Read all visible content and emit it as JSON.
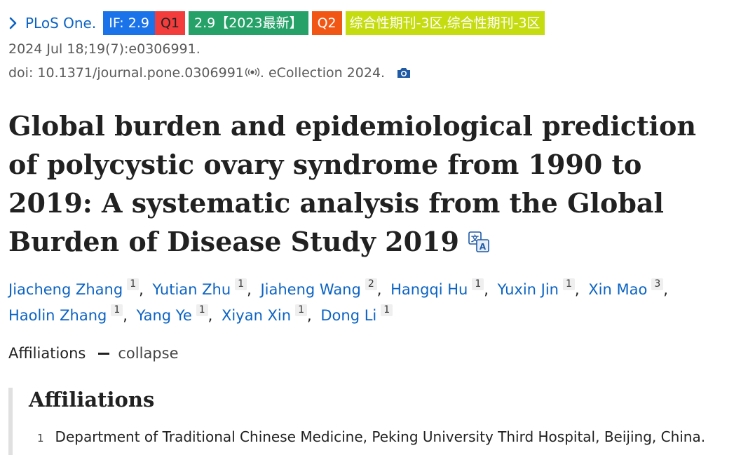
{
  "journal": {
    "name": "PLoS One.",
    "badges": {
      "impact_factor": "IF: 2.9",
      "quartile": "Q1",
      "cas_score": "2.9【2023最新】",
      "cas_quartile": "Q2",
      "cas_zone": "综合性期刊-3区,综合性期刊-3区"
    }
  },
  "citation": {
    "date": "2024 Jul 18;19(7):e0306991.",
    "doi": "doi: 10.1371/journal.pone.0306991",
    "ecollection": ". eCollection 2024."
  },
  "article": {
    "title": "Global burden and epidemiological prediction of polycystic ovary syndrome from 1990 to 2019: A systematic analysis from the Global Burden of Disease Study 2019"
  },
  "authors": [
    {
      "name": "Jiacheng Zhang",
      "aff": "1"
    },
    {
      "name": "Yutian Zhu",
      "aff": "1"
    },
    {
      "name": "Jiaheng Wang",
      "aff": "2"
    },
    {
      "name": "Hangqi Hu",
      "aff": "1"
    },
    {
      "name": "Yuxin Jin",
      "aff": "1"
    },
    {
      "name": "Xin Mao",
      "aff": "3"
    },
    {
      "name": "Haolin Zhang",
      "aff": "1"
    },
    {
      "name": "Yang Ye",
      "aff": "1"
    },
    {
      "name": "Xiyan Xin",
      "aff": "1"
    },
    {
      "name": "Dong Li",
      "aff": "1"
    }
  ],
  "author_separator": ",",
  "affiliations": {
    "toggle_label": "Affiliations",
    "collapse_label": "collapse",
    "heading": "Affiliations",
    "items": [
      {
        "number": "1",
        "text": "Department of Traditional Chinese Medicine, Peking University Third Hospital, Beijing, China."
      }
    ]
  },
  "colors": {
    "link": "#0b63c4",
    "badge_if": "#1a73e8",
    "badge_q1": "#f33d3d",
    "badge_cas": "#26a269",
    "badge_q2": "#f25614",
    "badge_zone": "#c5dc10"
  },
  "icons": {
    "journal_link": "chevron-right-icon",
    "doi": "broadcast-signal-icon",
    "snapshot": "camera-icon",
    "translate": "translate-icon",
    "collapse": "minus-icon"
  }
}
